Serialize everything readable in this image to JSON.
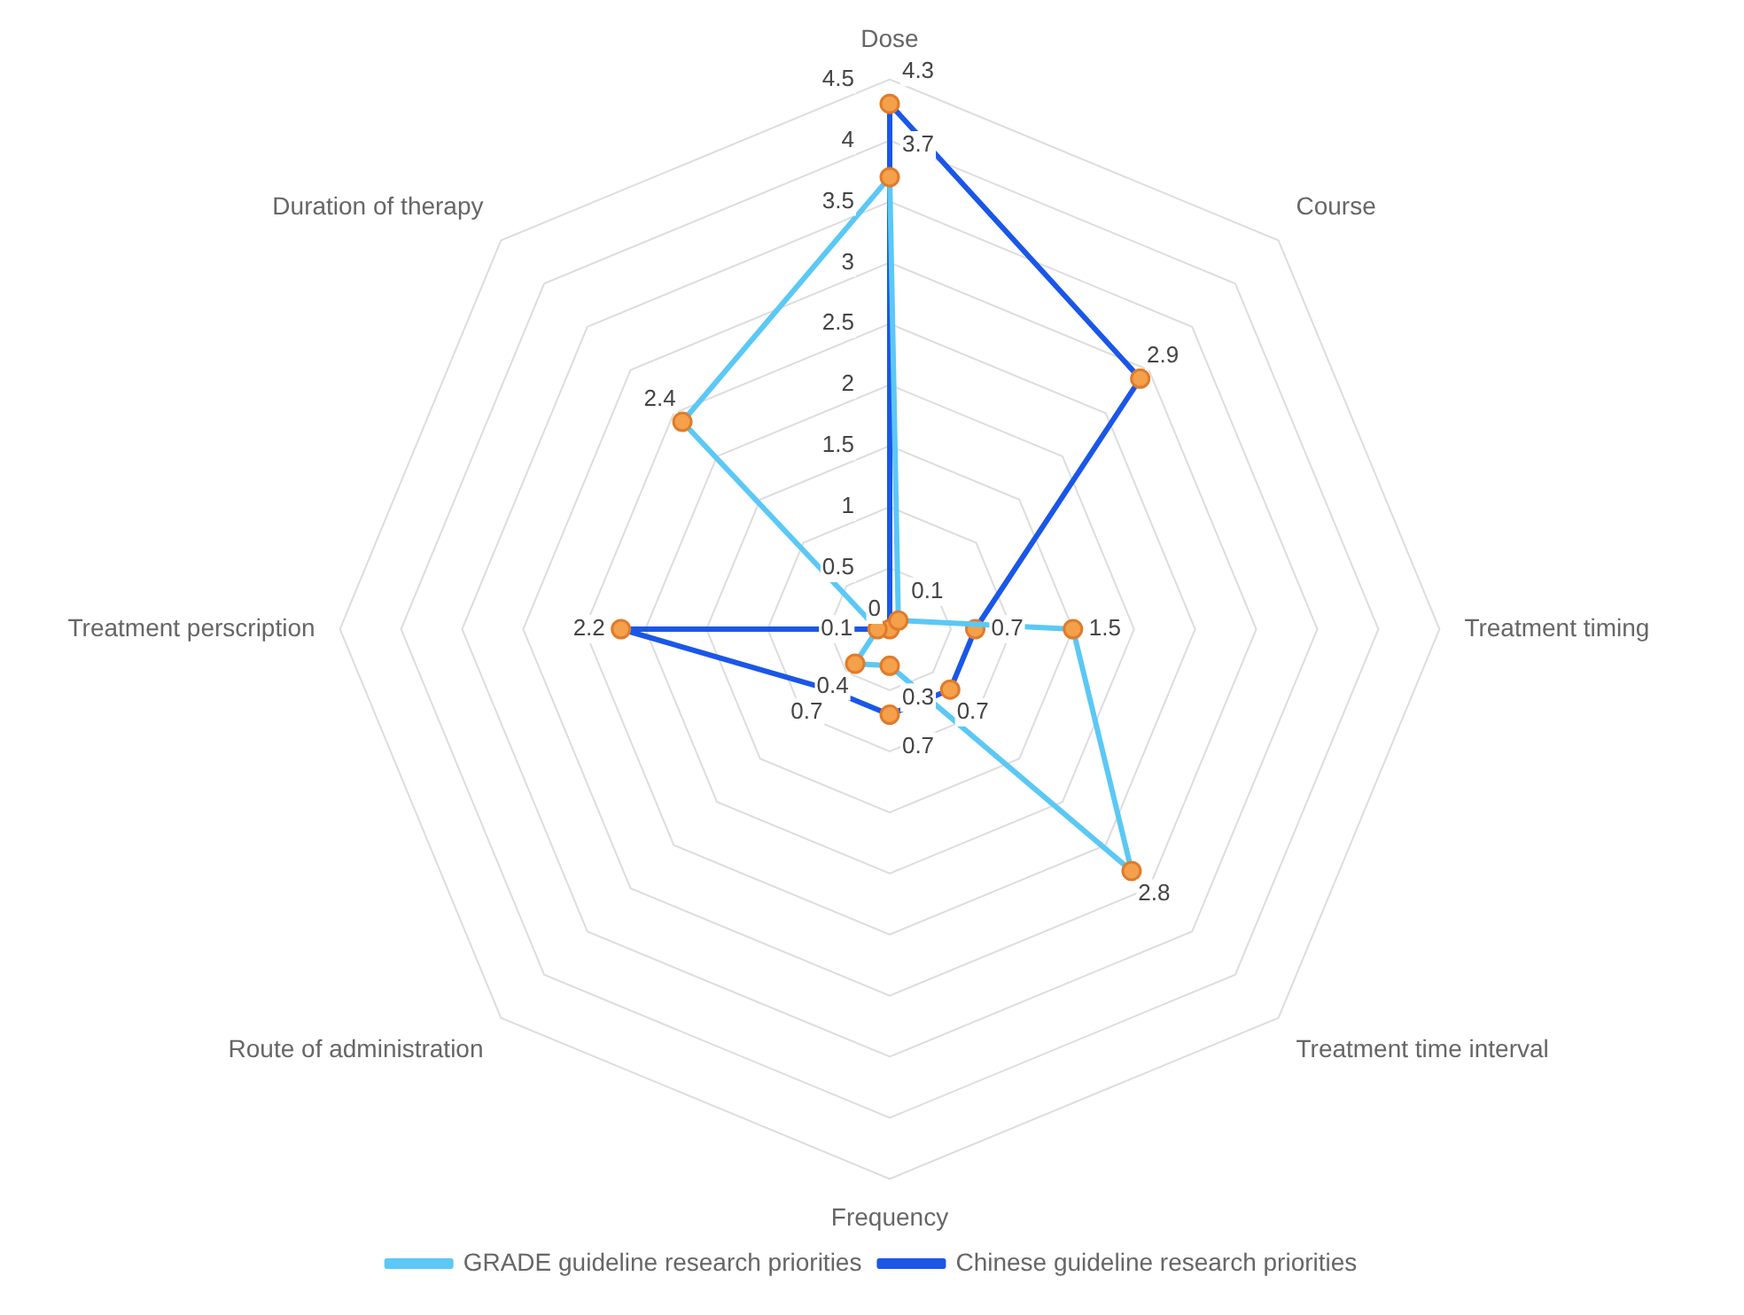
{
  "chart_data": {
    "type": "radar",
    "categories": [
      "Dose",
      "Course",
      "Treatment timing",
      "Treatment time interval",
      "Frequency",
      "Route of administration",
      "Treatment perscription",
      "Duration of therapy"
    ],
    "series": [
      {
        "name": "GRADE guideline research priorities",
        "color": "#5bc8f5",
        "values": [
          3.7,
          0.1,
          1.5,
          2.8,
          0.3,
          0.4,
          0.1,
          2.4
        ],
        "value_labels": [
          "3.7",
          "0.1",
          "1.5",
          "2.8",
          "0.3",
          "0.4",
          "0.1",
          "2.4"
        ]
      },
      {
        "name": "Chinese guideline research priorities",
        "color": "#1a56e8",
        "values": [
          4.3,
          2.9,
          0.7,
          0.7,
          0.7,
          0.7,
          2.2,
          0
        ],
        "value_labels": [
          "4.3",
          "2.9",
          "0.7",
          "0.7",
          "0.7",
          "0.7",
          "2.2",
          null
        ]
      }
    ],
    "ylim": [
      0,
      4.5
    ],
    "yticks": [
      0,
      0.5,
      1,
      1.5,
      2,
      2.5,
      3,
      3.5,
      4,
      4.5
    ],
    "grid": true,
    "legend": "bottom",
    "marker": "circle",
    "line_style": "solid"
  }
}
